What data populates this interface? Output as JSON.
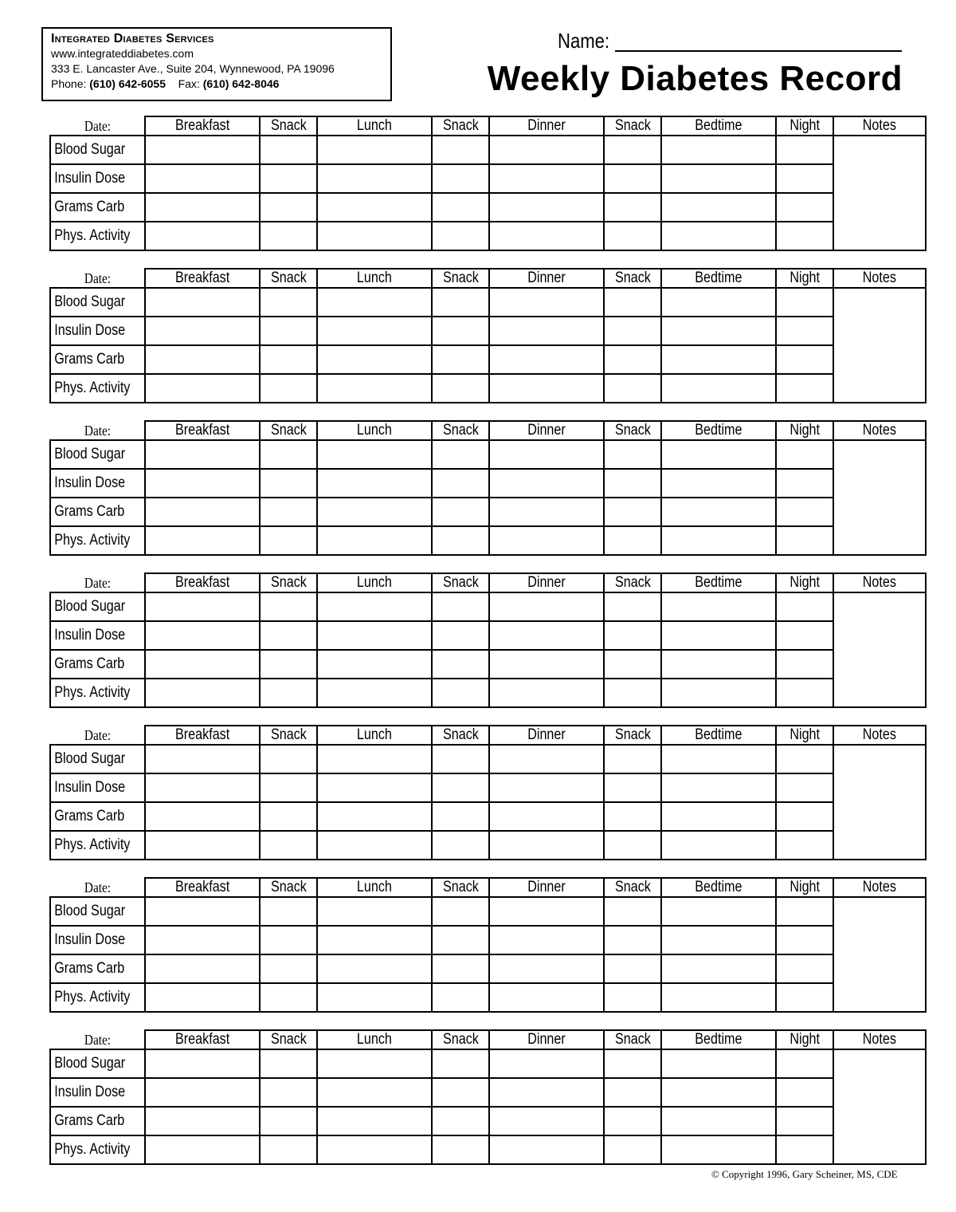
{
  "org": {
    "name": "Integrated Diabetes Services",
    "website": "www.integrateddiabetes.com",
    "address": "333 E. Lancaster Ave., Suite 204, Wynnewood, PA 19096",
    "phone_label": "Phone:",
    "phone": "(610) 642-6055",
    "fax_label": "Fax:",
    "fax": "(610) 642-8046"
  },
  "name_label": "Name:",
  "title": "Weekly Diabetes Record",
  "date_label": "Date:",
  "columns": [
    "Breakfast",
    "Snack",
    "Lunch",
    "Snack",
    "Dinner",
    "Snack",
    "Bedtime",
    "Night",
    "Notes"
  ],
  "rows": [
    "Blood Sugar",
    "Insulin Dose",
    "Grams Carb",
    "Phys. Activity"
  ],
  "day_count": 7,
  "copyright": "© Copyright 1996, Gary Scheiner, MS, CDE"
}
